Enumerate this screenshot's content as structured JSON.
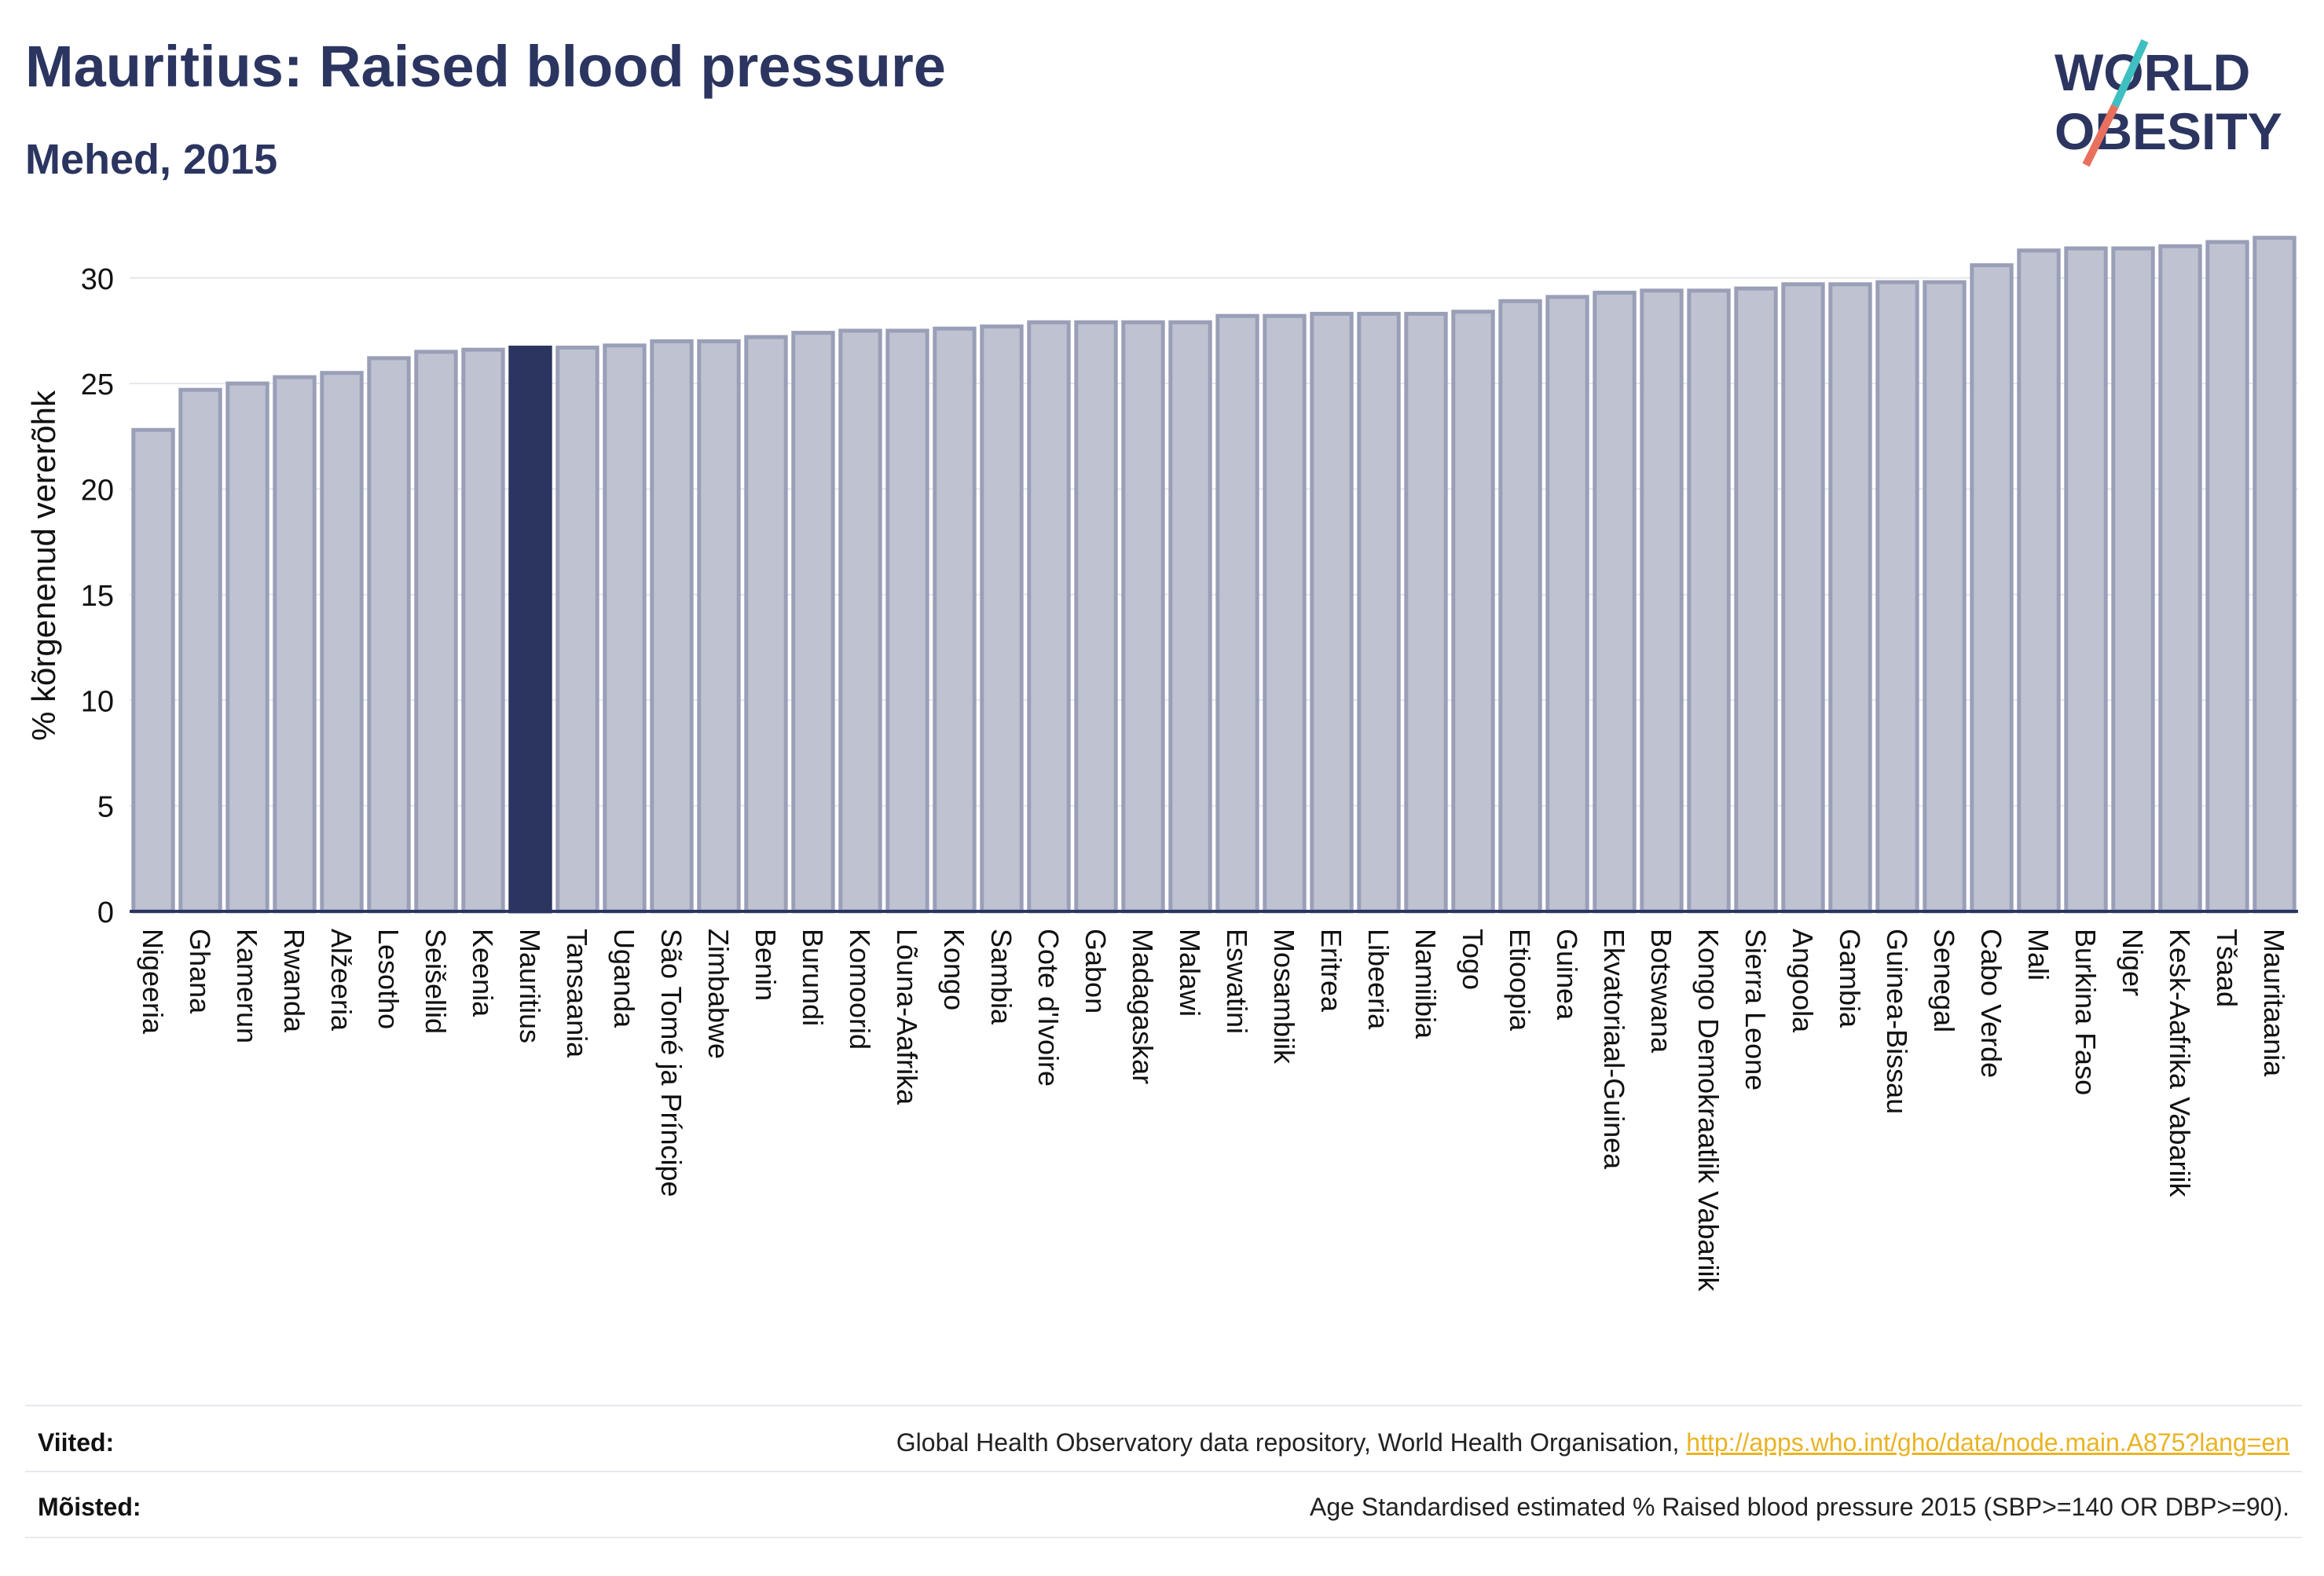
{
  "header": {
    "title": "Mauritius: Raised blood pressure",
    "subtitle": "Mehed, 2015"
  },
  "logo": {
    "line1": "WORLD",
    "line2": "OBESITY",
    "accent_teal": "#3fbfc1",
    "accent_coral": "#e8705e"
  },
  "chart_data": {
    "type": "bar",
    "ylabel": "% kõrgenenud vererõhk",
    "ylim": [
      0,
      32
    ],
    "yticks": [
      0,
      5,
      10,
      15,
      20,
      25,
      30
    ],
    "grid": true,
    "highlight": "Mauritius",
    "colors": {
      "bar": "#bfc2d0",
      "bar_edge": "#9a9fb8",
      "highlight": "#2b3560"
    },
    "categories": [
      "Nigeeria",
      "Ghana",
      "Kamerun",
      "Rwanda",
      "Alžeeria",
      "Lesotho",
      "Seišellid",
      "Keenia",
      "Mauritius",
      "Tansaania",
      "Uganda",
      "São Tomé ja Príncipe",
      "Zimbabwe",
      "Benin",
      "Burundi",
      "Komoorid",
      "Lõuna-Aafrika",
      "Kongo",
      "Sambia",
      "Cote d'Ivoire",
      "Gabon",
      "Madagaskar",
      "Malawi",
      "Eswatini",
      "Mosambiik",
      "Eritrea",
      "Libeeria",
      "Namiibia",
      "Togo",
      "Etioopia",
      "Guinea",
      "Ekvatoriaal-Guinea",
      "Botswana",
      "Kongo Demokraatlik Vabariik",
      "Sierra Leone",
      "Angoola",
      "Gambia",
      "Guinea-Bissau",
      "Senegal",
      "Cabo Verde",
      "Mali",
      "Burkina Faso",
      "Niger",
      "Kesk-Aafrika Vabariik",
      "Tšaad",
      "Mauritaania"
    ],
    "values": [
      22.8,
      24.7,
      25.0,
      25.3,
      25.5,
      26.2,
      26.5,
      26.6,
      26.7,
      26.7,
      26.8,
      27.0,
      27.0,
      27.2,
      27.4,
      27.5,
      27.5,
      27.6,
      27.7,
      27.9,
      27.9,
      27.9,
      27.9,
      28.2,
      28.2,
      28.3,
      28.3,
      28.3,
      28.4,
      28.9,
      29.1,
      29.3,
      29.4,
      29.4,
      29.5,
      29.7,
      29.7,
      29.8,
      29.8,
      30.6,
      31.3,
      31.4,
      31.4,
      31.5,
      31.7,
      31.9
    ]
  },
  "footer": {
    "sources_label": "Viited:",
    "sources_text": "Global Health Observatory data repository, World Health Organisation, ",
    "sources_link": "http://apps.who.int/gho/data/node.main.A875?lang=en",
    "definitions_label": "Mõisted:",
    "definitions_text": "Age Standardised estimated % Raised blood pressure 2015 (SBP>=140 OR DBP>=90)."
  }
}
